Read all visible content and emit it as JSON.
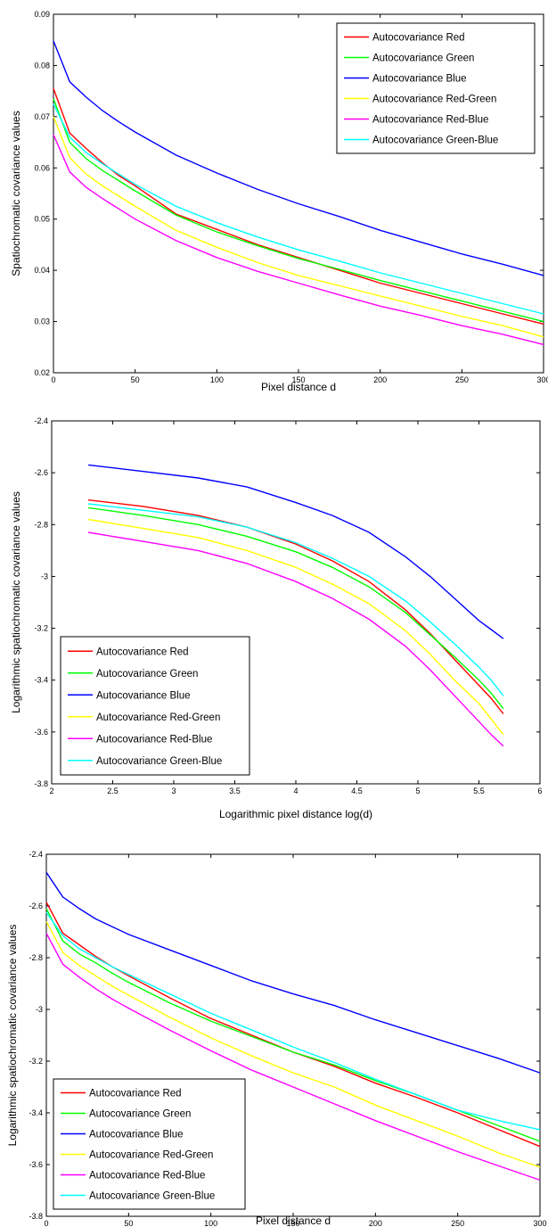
{
  "chart_data": [
    {
      "type": "line",
      "xlabel": "Pixel distance d",
      "ylabel": "Spatiochromatic covariance values",
      "xlim": [
        0,
        300
      ],
      "ylim": [
        0.02,
        0.09
      ],
      "xticks": [
        0,
        50,
        100,
        150,
        200,
        250,
        300
      ],
      "yticks": [
        0.02,
        0.03,
        0.04,
        0.05,
        0.06,
        0.07,
        0.08,
        0.09
      ],
      "ytick_labels": [
        "0.02",
        "0.03",
        "0.04",
        "0.05",
        "0.06",
        "0.07",
        "0.08",
        "0.09"
      ],
      "grid": false,
      "legend_position": "top-right",
      "x": [
        0,
        10,
        20,
        30,
        40,
        50,
        75,
        100,
        125,
        150,
        175,
        200,
        225,
        250,
        275,
        300
      ],
      "series": [
        {
          "name": "Autocovariance Red",
          "color": "#ff0000",
          "values": [
            0.0755,
            0.0668,
            0.0638,
            0.061,
            0.0585,
            0.0565,
            0.051,
            0.048,
            0.045,
            0.0425,
            0.04,
            0.0375,
            0.0355,
            0.0335,
            0.0315,
            0.0295
          ]
        },
        {
          "name": "Autocovariance Green",
          "color": "#00ff00",
          "values": [
            0.0735,
            0.065,
            0.0618,
            0.0595,
            0.0575,
            0.0555,
            0.0508,
            0.0475,
            0.0448,
            0.0423,
            0.0402,
            0.038,
            0.036,
            0.034,
            0.032,
            0.03
          ]
        },
        {
          "name": "Autocovariance Blue",
          "color": "#0000ff",
          "values": [
            0.0848,
            0.0768,
            0.0738,
            0.0712,
            0.069,
            0.067,
            0.0625,
            0.059,
            0.0558,
            0.053,
            0.0505,
            0.0478,
            0.0455,
            0.0432,
            0.0412,
            0.039
          ]
        },
        {
          "name": "Autocovariance Red-Green",
          "color": "#ffff00",
          "values": [
            0.07,
            0.062,
            0.0588,
            0.0565,
            0.0545,
            0.0525,
            0.0478,
            0.0445,
            0.0415,
            0.039,
            0.037,
            0.035,
            0.033,
            0.031,
            0.0292,
            0.027
          ]
        },
        {
          "name": "Autocovariance Red-Blue",
          "color": "#ff00ff",
          "values": [
            0.0665,
            0.0592,
            0.0562,
            0.054,
            0.052,
            0.05,
            0.0458,
            0.0425,
            0.0398,
            0.0375,
            0.0352,
            0.033,
            0.0312,
            0.0292,
            0.0275,
            0.0255
          ]
        },
        {
          "name": "Autocovariance Green-Blue",
          "color": "#00ffff",
          "values": [
            0.0725,
            0.066,
            0.063,
            0.0608,
            0.0588,
            0.0568,
            0.0525,
            0.0493,
            0.0465,
            0.044,
            0.0418,
            0.0395,
            0.0375,
            0.0355,
            0.0335,
            0.0315
          ]
        }
      ]
    },
    {
      "type": "line",
      "xlabel": "Logarithmic pixel distance log(d)",
      "ylabel": "Logarithmic spatiochromatic covariance values",
      "xlim": [
        2,
        6
      ],
      "ylim": [
        -3.8,
        -2.4
      ],
      "xticks": [
        2,
        2.5,
        3,
        3.5,
        4,
        4.5,
        5,
        5.5,
        6
      ],
      "yticks": [
        -3.8,
        -3.6,
        -3.4,
        -3.2,
        -3.0,
        -2.8,
        -2.6,
        -2.4
      ],
      "xtick_labels": [
        "2",
        "2.5",
        "3",
        "3.5",
        "4",
        "4.5",
        "5",
        "5.5",
        "6"
      ],
      "ytick_labels": [
        "-3.8",
        "-3.6",
        "-3.4",
        "-3.2",
        "-3",
        "-2.8",
        "-2.6",
        "-2.4"
      ],
      "grid": false,
      "legend_position": "bottom-left",
      "x": [
        2.3,
        2.75,
        3.2,
        3.6,
        4.0,
        4.3,
        4.6,
        4.9,
        5.1,
        5.3,
        5.5,
        5.6,
        5.7
      ],
      "series": [
        {
          "name": "Autocovariance Red",
          "color": "#ff0000",
          "values": [
            -2.705,
            -2.73,
            -2.765,
            -2.81,
            -2.875,
            -2.94,
            -3.02,
            -3.13,
            -3.22,
            -3.32,
            -3.42,
            -3.47,
            -3.53
          ]
        },
        {
          "name": "Autocovariance Green",
          "color": "#00ff00",
          "values": [
            -2.735,
            -2.765,
            -2.8,
            -2.845,
            -2.905,
            -2.965,
            -3.04,
            -3.14,
            -3.225,
            -3.31,
            -3.4,
            -3.45,
            -3.51
          ]
        },
        {
          "name": "Autocovariance Blue",
          "color": "#0000ff",
          "values": [
            -2.57,
            -2.595,
            -2.62,
            -2.655,
            -2.715,
            -2.765,
            -2.83,
            -2.925,
            -3.0,
            -3.085,
            -3.17,
            -3.205,
            -3.24
          ]
        },
        {
          "name": "Autocovariance Red-Green",
          "color": "#ffff00",
          "values": [
            -2.78,
            -2.815,
            -2.85,
            -2.9,
            -2.965,
            -3.03,
            -3.105,
            -3.21,
            -3.3,
            -3.4,
            -3.49,
            -3.55,
            -3.61
          ]
        },
        {
          "name": "Autocovariance Red-Blue",
          "color": "#ff00ff",
          "values": [
            -2.83,
            -2.865,
            -2.9,
            -2.95,
            -3.02,
            -3.085,
            -3.165,
            -3.27,
            -3.36,
            -3.46,
            -3.56,
            -3.61,
            -3.655
          ]
        },
        {
          "name": "Autocovariance Green-Blue",
          "color": "#00ffff",
          "values": [
            -2.72,
            -2.745,
            -2.77,
            -2.81,
            -2.87,
            -2.93,
            -3.0,
            -3.095,
            -3.175,
            -3.26,
            -3.35,
            -3.4,
            -3.46
          ]
        }
      ]
    },
    {
      "type": "line",
      "xlabel": "Pixel distance d",
      "ylabel": "Logarithmic spatiochromatic covariance values",
      "xlim": [
        0,
        300
      ],
      "ylim": [
        -3.8,
        -2.4
      ],
      "xticks": [
        0,
        50,
        100,
        150,
        200,
        250,
        300
      ],
      "yticks": [
        -3.8,
        -3.6,
        -3.4,
        -3.2,
        -3.0,
        -2.8,
        -2.6,
        -2.4
      ],
      "ytick_labels": [
        "-3.8",
        "-3.6",
        "-3.4",
        "-3.2",
        "-3",
        "-2.8",
        "-2.6",
        "-2.4"
      ],
      "grid": false,
      "legend_position": "bottom-left",
      "x": [
        0,
        10,
        20,
        30,
        40,
        50,
        75,
        100,
        125,
        150,
        175,
        200,
        225,
        250,
        275,
        300
      ],
      "series": [
        {
          "name": "Autocovariance Red",
          "color": "#ff0000",
          "values": [
            -2.585,
            -2.705,
            -2.75,
            -2.795,
            -2.835,
            -2.87,
            -2.955,
            -3.035,
            -3.1,
            -3.165,
            -3.22,
            -3.285,
            -3.34,
            -3.4,
            -3.465,
            -3.53
          ]
        },
        {
          "name": "Autocovariance Green",
          "color": "#00ff00",
          "values": [
            -2.61,
            -2.735,
            -2.785,
            -2.82,
            -2.86,
            -2.895,
            -2.975,
            -3.045,
            -3.105,
            -3.165,
            -3.215,
            -3.275,
            -3.33,
            -3.39,
            -3.45,
            -3.51
          ]
        },
        {
          "name": "Autocovariance Blue",
          "color": "#0000ff",
          "values": [
            -2.47,
            -2.565,
            -2.61,
            -2.65,
            -2.68,
            -2.71,
            -2.77,
            -2.83,
            -2.89,
            -2.94,
            -2.985,
            -3.04,
            -3.09,
            -3.14,
            -3.19,
            -3.245
          ]
        },
        {
          "name": "Autocovariance Red-Green",
          "color": "#ffff00",
          "values": [
            -2.66,
            -2.78,
            -2.83,
            -2.87,
            -2.91,
            -2.945,
            -3.03,
            -3.11,
            -3.18,
            -3.245,
            -3.3,
            -3.37,
            -3.43,
            -3.49,
            -3.555,
            -3.61
          ]
        },
        {
          "name": "Autocovariance Red-Blue",
          "color": "#ff00ff",
          "values": [
            -2.705,
            -2.825,
            -2.875,
            -2.92,
            -2.96,
            -2.995,
            -3.08,
            -3.16,
            -3.235,
            -3.3,
            -3.365,
            -3.43,
            -3.49,
            -3.55,
            -3.605,
            -3.66
          ]
        },
        {
          "name": "Autocovariance Green-Blue",
          "color": "#00ffff",
          "values": [
            -2.625,
            -2.715,
            -2.765,
            -2.8,
            -2.835,
            -2.865,
            -2.94,
            -3.015,
            -3.08,
            -3.145,
            -3.205,
            -3.27,
            -3.33,
            -3.39,
            -3.43,
            -3.465
          ]
        }
      ]
    }
  ]
}
